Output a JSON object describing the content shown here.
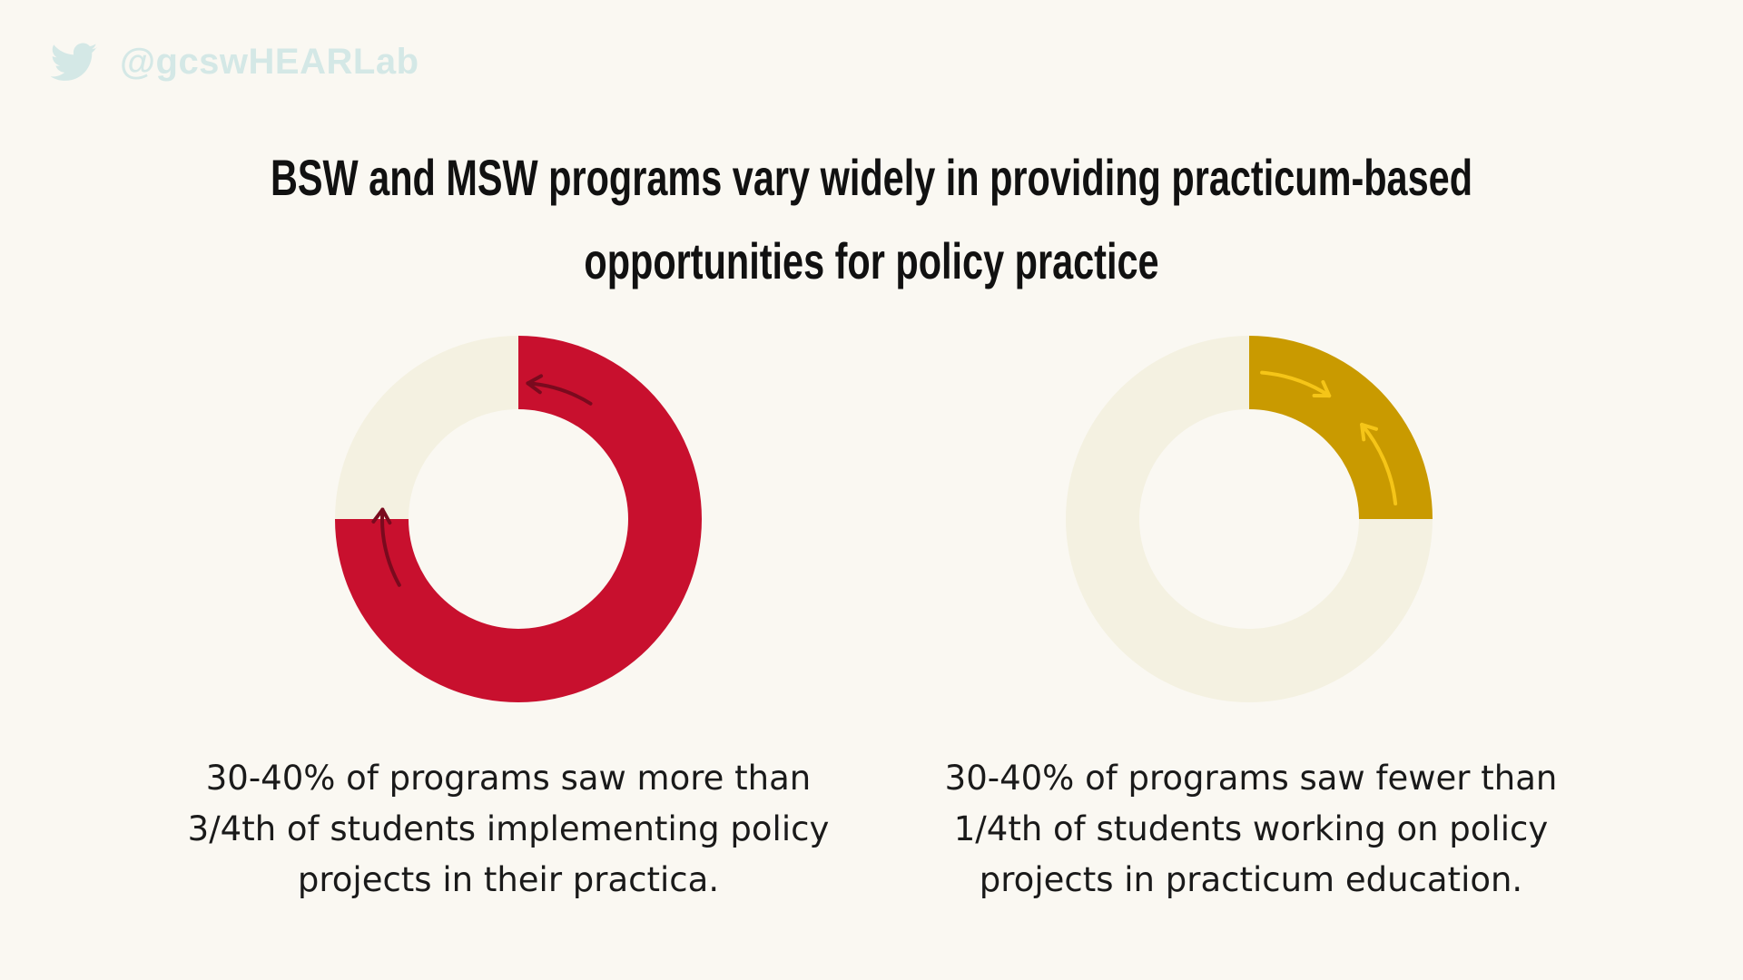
{
  "header": {
    "handle": "@gcswHEARLab",
    "icon": "twitter-bird-icon"
  },
  "title": {
    "line1": "BSW and MSW programs vary widely in providing practicum-based",
    "line2": "opportunities for policy practice"
  },
  "chart_data": [
    {
      "type": "pie",
      "variant": "donut",
      "start": "top",
      "direction": "clockwise",
      "segments": [
        {
          "name": "more than 3/4th of students",
          "value": 75,
          "color": "#c8102e"
        },
        {
          "name": "remaining",
          "value": 25,
          "color": "#f4f1e1"
        }
      ],
      "annotation_arrow_color": "#7a0a1e",
      "caption": "30-40% of programs saw more than 3/4th of students implementing policy projects in their practica."
    },
    {
      "type": "pie",
      "variant": "donut",
      "start": "top",
      "direction": "clockwise",
      "segments": [
        {
          "name": "fewer than 1/4th of students",
          "value": 25,
          "color": "#c99a00"
        },
        {
          "name": "remaining",
          "value": 75,
          "color": "#f4f1e1"
        }
      ],
      "annotation_arrow_color": "#f5c518",
      "caption": "30-40% of programs saw fewer than 1/4th of students working on policy projects in practicum education."
    }
  ],
  "captions": {
    "left": {
      "line1": "30-40% of programs saw more than",
      "line2": "3/4th of students implementing policy",
      "line3": "projects in their practica."
    },
    "right": {
      "line1": "30-40% of programs saw fewer than",
      "line2": "1/4th of students working on policy",
      "line3": "projects in practicum education."
    }
  }
}
